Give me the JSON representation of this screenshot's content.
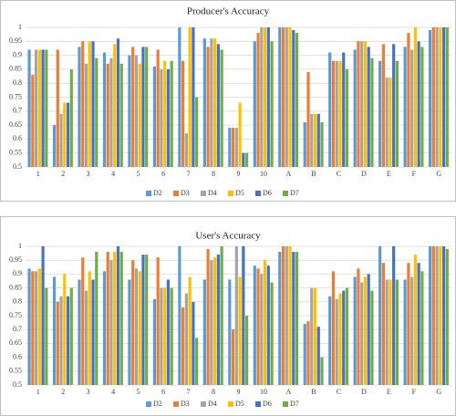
{
  "chart_data": [
    {
      "type": "bar",
      "title": "Producer's Accuracy",
      "categories": [
        "1",
        "2",
        "3",
        "4",
        "5",
        "6",
        "7",
        "8",
        "9",
        "10",
        "A",
        "B",
        "C",
        "D",
        "E",
        "F",
        "G"
      ],
      "ylim": [
        0.5,
        1
      ],
      "yticks": [
        0.5,
        0.55,
        0.6,
        0.65,
        0.7,
        0.75,
        0.8,
        0.85,
        0.9,
        0.95,
        1
      ],
      "grid": true,
      "series": [
        {
          "name": "D2",
          "color": "#5b9bd5",
          "values": [
            0.92,
            0.65,
            0.93,
            0.91,
            0.9,
            0.86,
            1.0,
            0.96,
            0.64,
            0.95,
            1.0,
            0.66,
            0.91,
            0.92,
            0.88,
            0.93,
            0.99
          ]
        },
        {
          "name": "D3",
          "color": "#ed7d31",
          "values": [
            0.83,
            0.92,
            0.95,
            0.87,
            0.93,
            0.92,
            0.88,
            0.93,
            0.64,
            0.98,
            1.0,
            0.84,
            0.88,
            0.95,
            0.94,
            0.98,
            1.0
          ]
        },
        {
          "name": "D4",
          "color": "#a5a5a5",
          "values": [
            0.92,
            0.69,
            0.87,
            0.89,
            0.9,
            0.85,
            0.62,
            0.96,
            0.64,
            1.0,
            1.0,
            0.69,
            0.88,
            0.95,
            0.82,
            0.92,
            1.0
          ]
        },
        {
          "name": "D5",
          "color": "#ffc000",
          "values": [
            0.92,
            0.73,
            0.95,
            0.94,
            0.87,
            0.88,
            1.0,
            0.96,
            0.73,
            1.0,
            1.0,
            0.69,
            0.88,
            0.95,
            0.82,
            1.0,
            1.0
          ]
        },
        {
          "name": "D6",
          "color": "#4472c4",
          "values": [
            0.92,
            0.73,
            0.95,
            0.96,
            0.93,
            0.85,
            1.0,
            0.94,
            0.55,
            1.0,
            0.99,
            0.69,
            0.91,
            0.93,
            0.94,
            0.95,
            1.0
          ]
        },
        {
          "name": "D7",
          "color": "#70ad47",
          "values": [
            0.92,
            0.85,
            0.89,
            0.87,
            0.93,
            0.88,
            0.75,
            0.92,
            0.55,
            0.95,
            0.98,
            0.66,
            0.85,
            0.89,
            0.88,
            0.93,
            1.0
          ]
        }
      ]
    },
    {
      "type": "bar",
      "title": "User's Accuracy",
      "categories": [
        "1",
        "2",
        "3",
        "4",
        "5",
        "6",
        "7",
        "8",
        "9",
        "10",
        "A",
        "B",
        "C",
        "D",
        "E",
        "F",
        "G"
      ],
      "ylim": [
        0.5,
        1
      ],
      "yticks": [
        0.5,
        0.55,
        0.6,
        0.65,
        0.7,
        0.75,
        0.8,
        0.85,
        0.9,
        0.95,
        1
      ],
      "grid": true,
      "series": [
        {
          "name": "D2",
          "color": "#5b9bd5",
          "values": [
            0.92,
            0.89,
            0.88,
            0.91,
            0.88,
            0.81,
            1.0,
            0.88,
            0.88,
            0.93,
            0.98,
            0.72,
            0.82,
            0.89,
            1.0,
            0.88,
            1.0
          ]
        },
        {
          "name": "D3",
          "color": "#ed7d31",
          "values": [
            0.91,
            0.8,
            0.96,
            0.98,
            0.95,
            0.96,
            0.78,
            0.99,
            0.7,
            0.92,
            1.0,
            0.73,
            0.91,
            0.92,
            0.94,
            0.94,
            1.0
          ]
        },
        {
          "name": "D4",
          "color": "#a5a5a5",
          "values": [
            0.91,
            0.82,
            0.84,
            0.95,
            0.92,
            0.85,
            0.83,
            0.95,
            1.0,
            0.9,
            1.0,
            0.85,
            0.81,
            0.87,
            0.88,
            0.89,
            1.0
          ]
        },
        {
          "name": "D5",
          "color": "#ffc000",
          "values": [
            0.92,
            0.9,
            0.91,
            0.98,
            0.91,
            0.85,
            0.89,
            0.96,
            0.89,
            0.95,
            1.0,
            0.85,
            0.83,
            0.89,
            0.88,
            0.97,
            1.0
          ]
        },
        {
          "name": "D6",
          "color": "#4472c4",
          "values": [
            1.0,
            0.82,
            0.88,
            1.0,
            0.97,
            0.88,
            0.8,
            0.97,
            1.0,
            0.93,
            0.98,
            0.71,
            0.84,
            0.9,
            1.0,
            0.94,
            1.0
          ]
        },
        {
          "name": "D7",
          "color": "#70ad47",
          "values": [
            0.85,
            0.85,
            0.98,
            0.98,
            0.97,
            0.85,
            0.67,
            1.0,
            0.75,
            0.87,
            0.98,
            0.6,
            0.85,
            0.84,
            0.88,
            0.91,
            0.99
          ]
        }
      ]
    }
  ]
}
